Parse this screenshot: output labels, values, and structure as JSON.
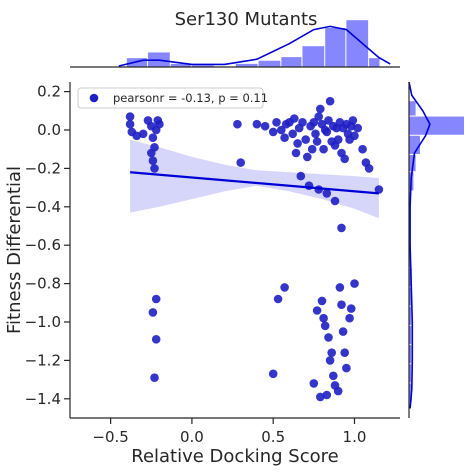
{
  "chart_data": {
    "type": "scatter",
    "title": "Ser130 Mutants",
    "xlabel": "Relative Docking Score",
    "ylabel": "Fitness Differential",
    "xlim": [
      -0.75,
      1.28
    ],
    "ylim": [
      -1.5,
      0.25
    ],
    "xticks": [
      -0.5,
      0.0,
      0.5,
      1.0
    ],
    "xtick_labels": [
      "−0.5",
      "0.0",
      "0.5",
      "1.0"
    ],
    "yticks": [
      0.2,
      0.0,
      -0.2,
      -0.4,
      -0.6,
      -0.8,
      -1.0,
      -1.2,
      -1.4
    ],
    "ytick_labels": [
      "0.2",
      "0.0",
      "−0.2",
      "−0.4",
      "−0.6",
      "−0.8",
      "−1.0",
      "−1.2",
      "−1.4"
    ],
    "grid": false,
    "legend_location": "top-left",
    "legend_label": "pearsonr = -0.13, p = 0.11",
    "colors": {
      "points": "#1f1fc4",
      "regression": "#0000d6",
      "ci_band": "#d6d6fb",
      "hist_bar": "#8080ff",
      "kde": "#0000d6"
    },
    "regression_line": {
      "x": [
        -0.38,
        1.15
      ],
      "y": [
        -0.22,
        -0.33
      ]
    },
    "ci_band": {
      "x": [
        -0.38,
        -0.2,
        0.0,
        0.2,
        0.4,
        0.6,
        0.8,
        1.0,
        1.15
      ],
      "upper": [
        -0.05,
        -0.09,
        -0.14,
        -0.18,
        -0.21,
        -0.22,
        -0.23,
        -0.24,
        -0.25
      ],
      "lower": [
        -0.43,
        -0.4,
        -0.36,
        -0.32,
        -0.29,
        -0.32,
        -0.36,
        -0.41,
        -0.46
      ]
    },
    "points": [
      {
        "x": -0.38,
        "y": 0.07
      },
      {
        "x": -0.38,
        "y": 0.03
      },
      {
        "x": -0.37,
        "y": -0.01
      },
      {
        "x": -0.34,
        "y": -0.03
      },
      {
        "x": -0.3,
        "y": -0.02
      },
      {
        "x": -0.27,
        "y": 0.05
      },
      {
        "x": -0.25,
        "y": 0.02
      },
      {
        "x": -0.24,
        "y": -0.04
      },
      {
        "x": -0.23,
        "y": -0.09
      },
      {
        "x": -0.22,
        "y": 0.0
      },
      {
        "x": -0.25,
        "y": -0.12
      },
      {
        "x": -0.24,
        "y": -0.16
      },
      {
        "x": -0.23,
        "y": -0.2
      },
      {
        "x": -0.21,
        "y": 0.05
      },
      {
        "x": -0.2,
        "y": 0.03
      },
      {
        "x": -0.22,
        "y": -0.88
      },
      {
        "x": -0.24,
        "y": -0.95
      },
      {
        "x": -0.22,
        "y": -1.09
      },
      {
        "x": -0.23,
        "y": -1.29
      },
      {
        "x": 0.28,
        "y": 0.03
      },
      {
        "x": 0.3,
        "y": -0.17
      },
      {
        "x": 0.4,
        "y": 0.03
      },
      {
        "x": 0.45,
        "y": 0.02
      },
      {
        "x": 0.5,
        "y": -0.01
      },
      {
        "x": 0.52,
        "y": 0.04
      },
      {
        "x": 0.55,
        "y": 0.0
      },
      {
        "x": 0.57,
        "y": -0.04
      },
      {
        "x": 0.58,
        "y": 0.03
      },
      {
        "x": 0.6,
        "y": 0.04
      },
      {
        "x": 0.62,
        "y": -0.02
      },
      {
        "x": 0.63,
        "y": 0.06
      },
      {
        "x": 0.64,
        "y": -0.12
      },
      {
        "x": 0.65,
        "y": -0.07
      },
      {
        "x": 0.66,
        "y": 0.01
      },
      {
        "x": 0.67,
        "y": -0.24
      },
      {
        "x": 0.68,
        "y": 0.04
      },
      {
        "x": 0.7,
        "y": -0.05
      },
      {
        "x": 0.71,
        "y": -0.14
      },
      {
        "x": 0.72,
        "y": -0.29
      },
      {
        "x": 0.73,
        "y": 0.02
      },
      {
        "x": 0.74,
        "y": -0.1
      },
      {
        "x": 0.75,
        "y": 0.04
      },
      {
        "x": 0.76,
        "y": -0.02
      },
      {
        "x": 0.77,
        "y": -0.06
      },
      {
        "x": 0.78,
        "y": 0.07
      },
      {
        "x": 0.79,
        "y": 0.11
      },
      {
        "x": 0.8,
        "y": 0.03
      },
      {
        "x": 0.81,
        "y": -0.1
      },
      {
        "x": 0.82,
        "y": 0.0
      },
      {
        "x": 0.83,
        "y": -0.01
      },
      {
        "x": 0.84,
        "y": 0.05
      },
      {
        "x": 0.85,
        "y": 0.15
      },
      {
        "x": 0.86,
        "y": -0.06
      },
      {
        "x": 0.87,
        "y": 0.02
      },
      {
        "x": 0.88,
        "y": -0.08
      },
      {
        "x": 0.89,
        "y": 0.01
      },
      {
        "x": 0.9,
        "y": -0.05
      },
      {
        "x": 0.91,
        "y": 0.04
      },
      {
        "x": 0.92,
        "y": -0.12
      },
      {
        "x": 0.93,
        "y": 0.01
      },
      {
        "x": 0.94,
        "y": -0.15
      },
      {
        "x": 0.95,
        "y": 0.03
      },
      {
        "x": 0.96,
        "y": -0.02
      },
      {
        "x": 0.97,
        "y": -0.05
      },
      {
        "x": 0.98,
        "y": 0.02
      },
      {
        "x": 0.99,
        "y": 0.05
      },
      {
        "x": 1.0,
        "y": -0.03
      },
      {
        "x": 1.02,
        "y": 0.01
      },
      {
        "x": 1.05,
        "y": -0.1
      },
      {
        "x": 1.07,
        "y": -0.17
      },
      {
        "x": 1.09,
        "y": -0.2
      },
      {
        "x": 1.15,
        "y": -0.31
      },
      {
        "x": 0.78,
        "y": -0.31
      },
      {
        "x": 0.83,
        "y": -0.33
      },
      {
        "x": 0.88,
        "y": -0.37
      },
      {
        "x": 0.92,
        "y": -0.51
      },
      {
        "x": 0.57,
        "y": -0.82
      },
      {
        "x": 0.53,
        "y": -0.88
      },
      {
        "x": 0.5,
        "y": -1.27
      },
      {
        "x": 0.75,
        "y": -1.32
      },
      {
        "x": 0.77,
        "y": -0.94
      },
      {
        "x": 0.8,
        "y": -0.89
      },
      {
        "x": 0.81,
        "y": -0.98
      },
      {
        "x": 0.82,
        "y": -1.02
      },
      {
        "x": 0.84,
        "y": -1.08
      },
      {
        "x": 0.85,
        "y": -1.2
      },
      {
        "x": 0.86,
        "y": -1.16
      },
      {
        "x": 0.87,
        "y": -1.28
      },
      {
        "x": 0.88,
        "y": -1.33
      },
      {
        "x": 0.9,
        "y": -1.36
      },
      {
        "x": 0.91,
        "y": -0.82
      },
      {
        "x": 0.92,
        "y": -0.91
      },
      {
        "x": 0.93,
        "y": -1.05
      },
      {
        "x": 0.94,
        "y": -1.16
      },
      {
        "x": 0.95,
        "y": -1.24
      },
      {
        "x": 0.97,
        "y": -0.98
      },
      {
        "x": 0.98,
        "y": -0.93
      },
      {
        "x": 1.0,
        "y": -0.8
      },
      {
        "x": 0.79,
        "y": -1.39
      },
      {
        "x": 0.83,
        "y": -1.38
      }
    ],
    "top_histogram": {
      "bin_edges": [
        -0.4,
        -0.27,
        -0.13,
        0.0,
        0.14,
        0.27,
        0.41,
        0.55,
        0.68,
        0.82,
        0.95,
        1.09,
        1.16
      ],
      "heights_relative": [
        0.17,
        0.28,
        0.06,
        0.03,
        0.0,
        0.06,
        0.12,
        0.19,
        0.4,
        0.75,
        0.9,
        0.17
      ]
    },
    "right_histogram": {
      "bin_edges": [
        0.15,
        0.07,
        -0.03,
        -0.13,
        -0.22,
        -0.32,
        -0.42,
        -0.52,
        -0.62,
        -0.72,
        -0.82,
        -0.92,
        -1.02,
        -1.12,
        -1.22,
        -1.32,
        -1.42
      ],
      "heights_relative": [
        0.12,
        1.0,
        0.2,
        0.12,
        0.08,
        0.03,
        0.02,
        0.02,
        0.03,
        0.05,
        0.05,
        0.04,
        0.04,
        0.04,
        0.04,
        0.05
      ]
    }
  }
}
